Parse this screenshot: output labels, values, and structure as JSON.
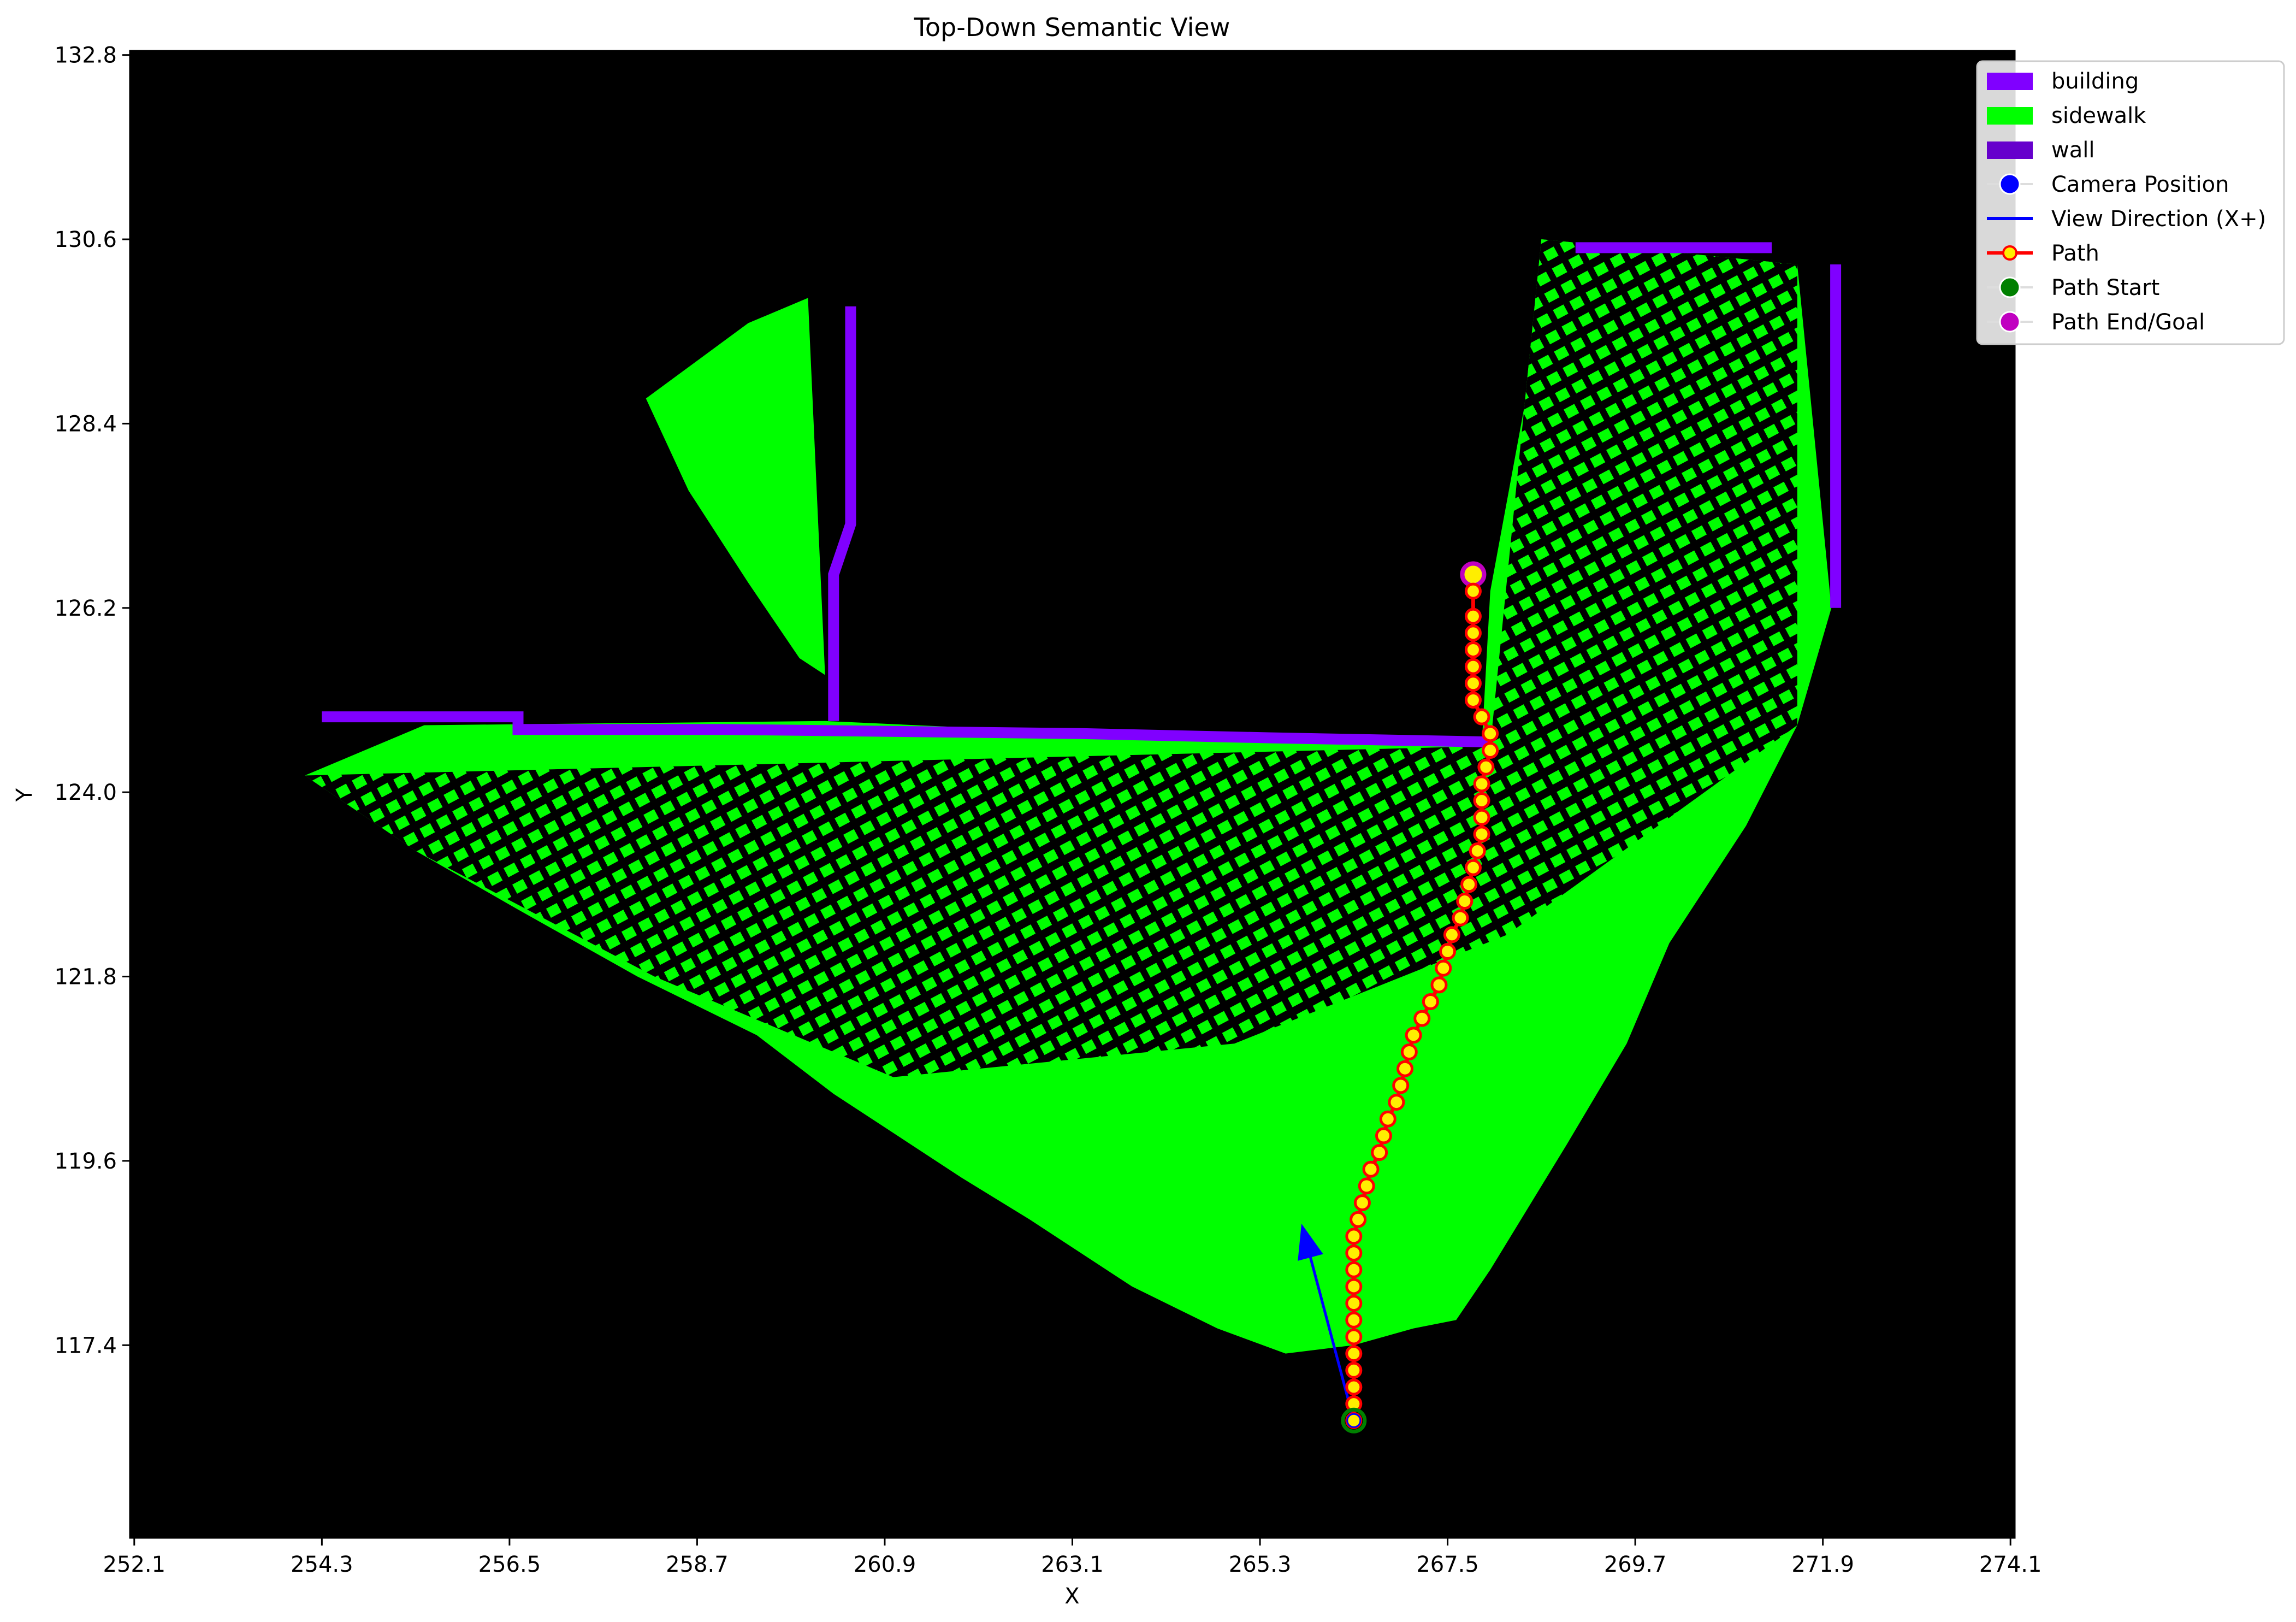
{
  "chart_data": {
    "type": "scatter",
    "title": "Top-Down Semantic View",
    "xlabel": "X",
    "ylabel": "Y",
    "xlim": [
      252.05,
      274.15
    ],
    "ylim": [
      115.1,
      132.85
    ],
    "x_ticks": [
      252.1,
      254.3,
      256.5,
      258.7,
      260.9,
      263.1,
      265.3,
      267.5,
      269.7,
      271.9,
      274.1
    ],
    "y_ticks": [
      117.4,
      119.6,
      121.8,
      124.0,
      126.2,
      128.4,
      130.6,
      132.8
    ],
    "x_tick_labels": [
      "252.1",
      "254.3",
      "256.5",
      "258.7",
      "260.9",
      "263.1",
      "265.3",
      "267.5",
      "269.7",
      "271.9",
      "274.1"
    ],
    "y_tick_labels": [
      "117.4",
      "119.6",
      "121.8",
      "124.0",
      "126.2",
      "128.4",
      "130.6",
      "132.8"
    ],
    "background_color": "#000000",
    "grid": false,
    "legend_placement": "top-right",
    "legend": [
      {
        "label": "building",
        "kind": "patch",
        "color": "#8000ff"
      },
      {
        "label": "sidewalk",
        "kind": "patch",
        "color": "#00ff00"
      },
      {
        "label": "wall",
        "kind": "patch",
        "color": "#6600cc"
      },
      {
        "label": "Camera Position",
        "kind": "marker",
        "color": "#0000ff"
      },
      {
        "label": "View Direction (X+)",
        "kind": "line",
        "color": "#0000ff"
      },
      {
        "label": "Path",
        "kind": "line-marker",
        "color": "#ff0000",
        "marker_color": "#ffee00"
      },
      {
        "label": "Path Start",
        "kind": "marker",
        "color": "#008000"
      },
      {
        "label": "Path End/Goal",
        "kind": "marker",
        "color": "#c000c0"
      }
    ],
    "regions": {
      "sidewalk_main": [
        [
          254.1,
          124.2
        ],
        [
          255.5,
          124.8
        ],
        [
          260.2,
          124.85
        ],
        [
          265.6,
          124.6
        ],
        [
          267.9,
          124.55
        ],
        [
          268.0,
          126.4
        ],
        [
          268.4,
          128.6
        ],
        [
          268.6,
          130.6
        ],
        [
          271.6,
          130.3
        ],
        [
          272.0,
          126.2
        ],
        [
          271.6,
          124.8
        ],
        [
          271.0,
          123.6
        ],
        [
          270.1,
          122.2
        ],
        [
          269.6,
          121.0
        ],
        [
          268.9,
          119.8
        ],
        [
          268.0,
          118.3
        ],
        [
          267.6,
          117.7
        ],
        [
          267.1,
          117.6
        ],
        [
          266.4,
          117.4
        ],
        [
          265.6,
          117.3
        ],
        [
          264.8,
          117.6
        ],
        [
          263.8,
          118.1
        ],
        [
          262.6,
          118.9
        ],
        [
          261.8,
          119.4
        ],
        [
          261.2,
          119.8
        ],
        [
          260.3,
          120.4
        ],
        [
          259.4,
          121.1
        ],
        [
          258.0,
          121.8
        ],
        [
          256.6,
          122.6
        ],
        [
          255.4,
          123.3
        ]
      ],
      "sidewalk_triangle": [
        [
          258.1,
          128.7
        ],
        [
          259.3,
          129.6
        ],
        [
          260.0,
          129.9
        ],
        [
          260.2,
          125.4
        ],
        [
          259.9,
          125.6
        ],
        [
          259.3,
          126.5
        ],
        [
          258.6,
          127.6
        ]
      ],
      "building_segments": [
        [
          [
            254.3,
            124.9
          ],
          [
            256.6,
            124.9
          ],
          [
            256.6,
            124.75
          ],
          [
            259.0,
            124.75
          ],
          [
            263.2,
            124.7
          ],
          [
            265.4,
            124.65
          ],
          [
            268.0,
            124.6
          ]
        ],
        [
          [
            260.3,
            124.85
          ],
          [
            260.3,
            126.6
          ],
          [
            260.5,
            127.2
          ],
          [
            260.5,
            129.8
          ]
        ],
        [
          [
            269.0,
            130.5
          ],
          [
            271.3,
            130.5
          ]
        ],
        [
          [
            272.05,
            130.3
          ],
          [
            272.05,
            126.2
          ]
        ]
      ],
      "scatter_lattice_region": [
        [
          254.1,
          124.2
        ],
        [
          268.0,
          124.55
        ],
        [
          268.4,
          128.6
        ],
        [
          268.6,
          130.6
        ],
        [
          271.6,
          130.3
        ],
        [
          271.6,
          124.8
        ],
        [
          268.2,
          122.3
        ],
        [
          265.0,
          121.0
        ],
        [
          261.0,
          120.6
        ],
        [
          258.2,
          121.8
        ],
        [
          255.4,
          123.3
        ]
      ]
    },
    "camera": {
      "x": 266.4,
      "y": 116.5,
      "color": "#0000ff"
    },
    "view_direction": {
      "from": [
        266.4,
        116.5
      ],
      "to": [
        265.8,
        118.8
      ],
      "color": "#0000ff"
    },
    "path": {
      "color": "#ff0000",
      "marker_color": "#ffee00",
      "x": [
        266.4,
        266.4,
        266.4,
        266.4,
        266.4,
        266.4,
        266.4,
        266.4,
        266.4,
        266.4,
        266.4,
        266.4,
        266.45,
        266.5,
        266.55,
        266.6,
        266.7,
        266.75,
        266.8,
        266.9,
        266.95,
        267.0,
        267.05,
        267.1,
        267.2,
        267.3,
        267.4,
        267.45,
        267.5,
        267.55,
        267.65,
        267.7,
        267.75,
        267.8,
        267.85,
        267.9,
        267.9,
        267.9,
        267.9,
        267.95,
        268.0,
        268.0,
        267.9,
        267.8,
        267.8,
        267.8,
        267.8,
        267.8,
        267.8,
        267.8
      ],
      "y": [
        116.5,
        116.7,
        116.9,
        117.1,
        117.3,
        117.5,
        117.7,
        117.9,
        118.1,
        118.3,
        118.5,
        118.7,
        118.9,
        119.1,
        119.3,
        119.5,
        119.7,
        119.9,
        120.1,
        120.3,
        120.5,
        120.7,
        120.9,
        121.1,
        121.3,
        121.5,
        121.7,
        121.9,
        122.1,
        122.3,
        122.5,
        122.7,
        122.9,
        123.1,
        123.3,
        123.5,
        123.7,
        123.9,
        124.1,
        124.3,
        124.5,
        124.7,
        124.9,
        125.1,
        125.3,
        125.5,
        125.7,
        125.9,
        126.1,
        126.4
      ]
    },
    "path_start": {
      "x": 266.4,
      "y": 116.5,
      "color": "#008000"
    },
    "path_end": {
      "x": 267.8,
      "y": 126.6,
      "color": "#c000c0"
    }
  }
}
